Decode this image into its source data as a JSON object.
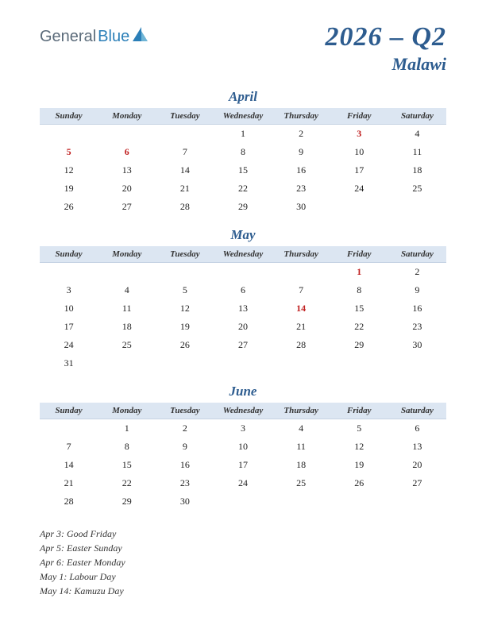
{
  "logo": {
    "part1": "General",
    "part2": "Blue"
  },
  "title": "2026 – Q2",
  "subtitle": "Malawi",
  "day_headers": [
    "Sunday",
    "Monday",
    "Tuesday",
    "Wednesday",
    "Thursday",
    "Friday",
    "Saturday"
  ],
  "colors": {
    "accent": "#2d5c8f",
    "header_bg": "#dce6f2",
    "holiday": "#c02020",
    "logo_gray": "#5b6b7a",
    "logo_blue": "#2b7fb8",
    "background": "#ffffff"
  },
  "months": [
    {
      "name": "April",
      "weeks": [
        [
          "",
          "",
          "",
          "1",
          "2",
          "3",
          "4"
        ],
        [
          "5",
          "6",
          "7",
          "8",
          "9",
          "10",
          "11"
        ],
        [
          "12",
          "13",
          "14",
          "15",
          "16",
          "17",
          "18"
        ],
        [
          "19",
          "20",
          "21",
          "22",
          "23",
          "24",
          "25"
        ],
        [
          "26",
          "27",
          "28",
          "29",
          "30",
          "",
          ""
        ]
      ],
      "holidays": [
        "3",
        "5",
        "6"
      ]
    },
    {
      "name": "May",
      "weeks": [
        [
          "",
          "",
          "",
          "",
          "",
          "1",
          "2"
        ],
        [
          "3",
          "4",
          "5",
          "6",
          "7",
          "8",
          "9"
        ],
        [
          "10",
          "11",
          "12",
          "13",
          "14",
          "15",
          "16"
        ],
        [
          "17",
          "18",
          "19",
          "20",
          "21",
          "22",
          "23"
        ],
        [
          "24",
          "25",
          "26",
          "27",
          "28",
          "29",
          "30"
        ],
        [
          "31",
          "",
          "",
          "",
          "",
          "",
          ""
        ]
      ],
      "holidays": [
        "1",
        "14"
      ]
    },
    {
      "name": "June",
      "weeks": [
        [
          "",
          "1",
          "2",
          "3",
          "4",
          "5",
          "6"
        ],
        [
          "7",
          "8",
          "9",
          "10",
          "11",
          "12",
          "13"
        ],
        [
          "14",
          "15",
          "16",
          "17",
          "18",
          "19",
          "20"
        ],
        [
          "21",
          "22",
          "23",
          "24",
          "25",
          "26",
          "27"
        ],
        [
          "28",
          "29",
          "30",
          "",
          "",
          "",
          ""
        ]
      ],
      "holidays": []
    }
  ],
  "holiday_list": [
    "Apr 3: Good Friday",
    "Apr 5: Easter Sunday",
    "Apr 6: Easter Monday",
    "May 1: Labour Day",
    "May 14: Kamuzu Day"
  ]
}
